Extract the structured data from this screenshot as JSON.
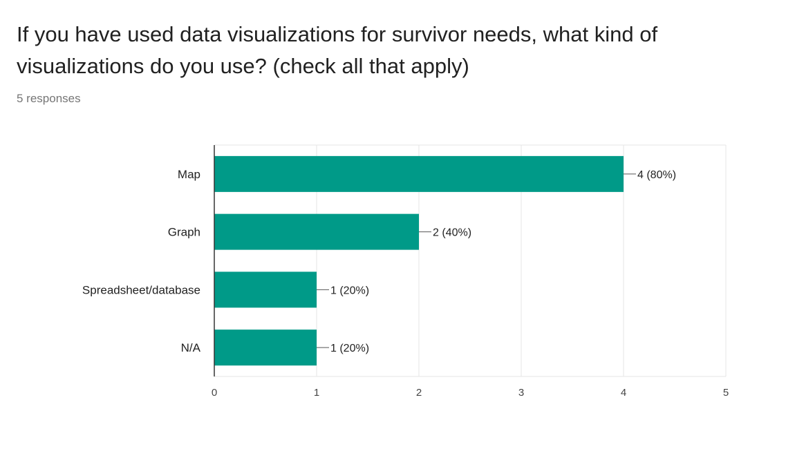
{
  "question": {
    "title": "If you have used data visualizations for survivor needs, what kind of visualizations do you use? (check all that apply)",
    "response_count": "5 responses"
  },
  "colors": {
    "bar": "#009A88",
    "grid": "#e6e6e6",
    "axis": "#333333"
  },
  "chart_data": {
    "type": "bar",
    "orientation": "horizontal",
    "categories": [
      "Map",
      "Graph",
      "Spreadsheet/database",
      "N/A"
    ],
    "values": [
      4,
      2,
      1,
      1
    ],
    "data_labels": [
      "4 (80%)",
      "2 (40%)",
      "1 (20%)",
      "1 (20%)"
    ],
    "xlim": [
      0,
      5
    ],
    "xticks": [
      0,
      1,
      2,
      3,
      4,
      5
    ],
    "grid": true
  }
}
